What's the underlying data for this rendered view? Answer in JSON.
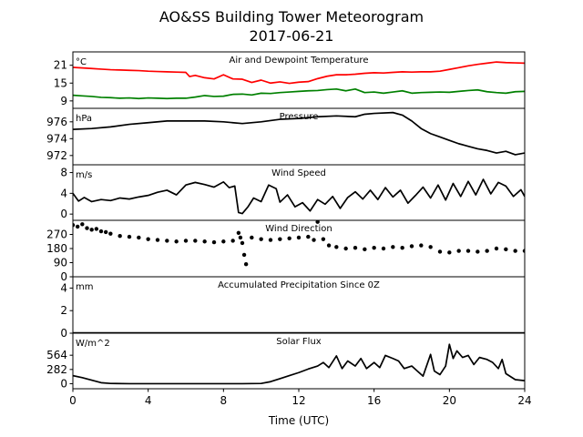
{
  "figure": {
    "title_line1": "AO&SS Building Tower Meteorogram",
    "title_line2": "2017-06-21",
    "xlabel": "Time (UTC)"
  },
  "chart_data": [
    {
      "type": "line",
      "panel": "Air and Dewpoint Temperature",
      "title": "Air and Dewpoint Temperature",
      "unit_label": "°C",
      "xlim": [
        0,
        24
      ],
      "ylim": [
        6.5,
        25.5
      ],
      "yticks": [
        9,
        15,
        21
      ],
      "ytick_labels": [
        "9",
        "15",
        "21"
      ],
      "series": [
        {
          "color": "#ff0000",
          "x": [
            0,
            0.5,
            1,
            1.5,
            2,
            2.5,
            3,
            3.5,
            4,
            4.5,
            5,
            5.5,
            6,
            6.2,
            6.5,
            7,
            7.5,
            8,
            8.5,
            9,
            9.5,
            10,
            10.5,
            11,
            11.5,
            12,
            12.5,
            13,
            13.5,
            14,
            14.5,
            15,
            15.5,
            16,
            16.5,
            17,
            17.5,
            18,
            18.5,
            19,
            19.5,
            20,
            20.5,
            21,
            21.5,
            22,
            22.5,
            23,
            23.5,
            24
          ],
          "y": [
            20.3,
            20.1,
            19.9,
            19.7,
            19.5,
            19.4,
            19.3,
            19.2,
            19,
            18.9,
            18.8,
            18.7,
            18.6,
            17.2,
            17.6,
            16.8,
            16.4,
            17.8,
            16.4,
            16.3,
            15.2,
            16,
            15,
            15.4,
            14.9,
            15.3,
            15.5,
            16.5,
            17.3,
            17.8,
            17.8,
            18,
            18.3,
            18.5,
            18.4,
            18.6,
            18.8,
            18.7,
            18.8,
            18.8,
            19,
            19.6,
            20.2,
            20.8,
            21.3,
            21.7,
            22.1,
            21.9,
            21.8,
            21.7
          ]
        },
        {
          "color": "#008000",
          "x": [
            0,
            0.5,
            1,
            1.5,
            2,
            2.5,
            3,
            3.5,
            4,
            4.5,
            5,
            5.5,
            6,
            6.5,
            7,
            7.5,
            8,
            8.5,
            9,
            9.5,
            10,
            10.5,
            11,
            11.5,
            12,
            12.5,
            13,
            13.5,
            14,
            14.5,
            15,
            15.5,
            16,
            16.5,
            17,
            17.5,
            18,
            18.5,
            19,
            19.5,
            20,
            20.5,
            21,
            21.5,
            22,
            22.5,
            23,
            23.5,
            24
          ],
          "y": [
            10.9,
            10.7,
            10.5,
            10.2,
            10.1,
            9.9,
            10,
            9.8,
            10,
            9.9,
            9.8,
            9.9,
            9.9,
            10.3,
            10.8,
            10.5,
            10.6,
            11.2,
            11.3,
            11,
            11.6,
            11.5,
            11.8,
            12,
            12.2,
            12.4,
            12.5,
            12.8,
            13,
            12.4,
            13,
            11.8,
            12,
            11.6,
            12,
            12.4,
            11.6,
            11.8,
            11.9,
            12,
            11.9,
            12.2,
            12.5,
            12.7,
            12.1,
            11.8,
            11.6,
            12.1,
            12.2
          ]
        }
      ]
    },
    {
      "type": "line",
      "panel": "Pressure",
      "title": "Pressure",
      "unit_label": "hPa",
      "xlim": [
        0,
        24
      ],
      "ylim": [
        970.9,
        977.6
      ],
      "yticks": [
        972,
        974,
        976
      ],
      "ytick_labels": [
        "972",
        "974",
        "976"
      ],
      "series": [
        {
          "color": "#000000",
          "x": [
            0,
            1,
            2,
            3,
            4,
            5,
            6,
            7,
            8,
            9,
            10,
            11,
            12,
            13,
            14,
            15,
            15.5,
            16,
            17,
            17.5,
            18,
            18.5,
            19,
            19.5,
            20,
            20.5,
            21,
            21.5,
            22,
            22.5,
            23,
            23.5,
            24
          ],
          "y": [
            975.1,
            975.2,
            975.4,
            975.7,
            975.9,
            976.1,
            976.1,
            976.1,
            976,
            975.8,
            976,
            976.3,
            976.4,
            976.6,
            976.7,
            976.6,
            976.9,
            977,
            977.1,
            976.8,
            976.1,
            975.2,
            974.6,
            974.2,
            973.8,
            973.4,
            973.1,
            972.8,
            972.6,
            972.3,
            972.5,
            972.1,
            972.3
          ]
        }
      ]
    },
    {
      "type": "line",
      "panel": "Wind Speed",
      "title": "Wind Speed",
      "unit_label": "m/s",
      "xlim": [
        0,
        24
      ],
      "ylim": [
        -1.2,
        9.5
      ],
      "yticks": [
        0,
        4,
        8
      ],
      "ytick_labels": [
        "0",
        "4",
        "8"
      ],
      "series": [
        {
          "color": "#000000",
          "x": [
            0,
            0.3,
            0.6,
            1,
            1.5,
            2,
            2.5,
            3,
            3.5,
            4,
            4.5,
            5,
            5.5,
            6,
            6.5,
            7,
            7.5,
            8,
            8.3,
            8.6,
            8.8,
            9,
            9.3,
            9.6,
            10,
            10.4,
            10.8,
            11,
            11.4,
            11.8,
            12.2,
            12.6,
            13,
            13.4,
            13.8,
            14.2,
            14.6,
            15,
            15.4,
            15.8,
            16.2,
            16.6,
            17,
            17.4,
            17.8,
            18.2,
            18.6,
            19,
            19.4,
            19.8,
            20.2,
            20.6,
            21,
            21.4,
            21.8,
            22.2,
            22.6,
            23,
            23.4,
            23.8,
            24
          ],
          "y": [
            4,
            2.5,
            3.2,
            2.4,
            2.8,
            2.6,
            3.1,
            2.9,
            3.3,
            3.6,
            4.2,
            4.6,
            3.7,
            5.6,
            6.1,
            5.7,
            5.2,
            6.2,
            5.1,
            5.4,
            0.3,
            0.1,
            1.4,
            3.1,
            2.4,
            5.6,
            4.9,
            2.3,
            3.7,
            1.4,
            2.2,
            0.6,
            2.8,
            1.9,
            3.4,
            1.1,
            3.2,
            4.3,
            2.9,
            4.6,
            2.8,
            5.1,
            3.3,
            4.6,
            2.1,
            3.6,
            5.2,
            3.1,
            5.6,
            2.7,
            5.9,
            3.4,
            6.3,
            3.7,
            6.7,
            3.9,
            6.1,
            5.4,
            3.4,
            4.7,
            3.4
          ]
        }
      ]
    },
    {
      "type": "scatter",
      "panel": "Wind Direction",
      "title": "Wind Direction",
      "unit_label": "",
      "xlim": [
        0,
        24
      ],
      "ylim": [
        0,
        360
      ],
      "yticks": [
        0,
        90,
        180,
        270
      ],
      "ytick_labels": [
        "0",
        "90",
        "180",
        "270"
      ],
      "series": [
        {
          "color": "#000000",
          "x": [
            0,
            0.25,
            0.5,
            0.75,
            1,
            1.25,
            1.5,
            1.75,
            2,
            2.5,
            3,
            3.5,
            4,
            4.5,
            5,
            5.5,
            6,
            6.5,
            7,
            7.5,
            8,
            8.5,
            8.8,
            8.9,
            9,
            9.1,
            9.2,
            9.5,
            10,
            10.5,
            11,
            11.5,
            12,
            12.5,
            12.8,
            13,
            13.3,
            13.6,
            14,
            14.5,
            15,
            15.5,
            16,
            16.5,
            17,
            17.5,
            18,
            18.5,
            19,
            19.5,
            20,
            20.5,
            21,
            21.5,
            22,
            22.5,
            23,
            23.5,
            24
          ],
          "y": [
            330,
            320,
            335,
            310,
            300,
            305,
            290,
            285,
            275,
            260,
            255,
            250,
            240,
            235,
            230,
            225,
            230,
            230,
            225,
            220,
            225,
            230,
            280,
            250,
            215,
            140,
            80,
            250,
            240,
            235,
            240,
            245,
            250,
            255,
            235,
            350,
            240,
            200,
            190,
            180,
            185,
            175,
            185,
            180,
            190,
            185,
            195,
            200,
            190,
            160,
            155,
            165,
            165,
            160,
            165,
            180,
            175,
            165,
            165
          ]
        }
      ]
    },
    {
      "type": "line",
      "panel": "Accumulated Precipitation Since 0Z",
      "title": "Accumulated Precipitation Since 0Z",
      "unit_label": "mm",
      "xlim": [
        0,
        24
      ],
      "ylim": [
        0,
        5
      ],
      "yticks": [
        0,
        2,
        4
      ],
      "ytick_labels": [
        "0",
        "2",
        "4"
      ],
      "series": [
        {
          "color": "#000000",
          "x": [
            0,
            24
          ],
          "y": [
            0,
            0
          ]
        }
      ]
    },
    {
      "type": "line",
      "panel": "Solar Flux",
      "title": "Solar Flux",
      "unit_label": "W/m^2",
      "xlim": [
        0,
        24
      ],
      "ylim": [
        -100,
        1000
      ],
      "yticks": [
        0,
        282,
        564
      ],
      "ytick_labels": [
        "0",
        "282",
        "564"
      ],
      "series": [
        {
          "color": "#000000",
          "x": [
            0,
            0.5,
            1,
            1.5,
            2,
            3,
            4,
            5,
            6,
            7,
            8,
            9,
            10,
            10.5,
            11,
            11.5,
            12,
            12.5,
            13,
            13.3,
            13.6,
            14,
            14.3,
            14.6,
            15,
            15.3,
            15.6,
            16,
            16.3,
            16.6,
            17,
            17.3,
            17.6,
            18,
            18.3,
            18.6,
            19,
            19.2,
            19.5,
            19.8,
            20,
            20.2,
            20.4,
            20.7,
            21,
            21.3,
            21.6,
            22,
            22.3,
            22.6,
            22.8,
            23,
            23.5,
            24
          ],
          "y": [
            160,
            120,
            70,
            20,
            5,
            0,
            0,
            0,
            0,
            0,
            0,
            0,
            5,
            40,
            100,
            160,
            220,
            290,
            350,
            420,
            320,
            550,
            300,
            450,
            350,
            500,
            300,
            420,
            320,
            560,
            500,
            450,
            300,
            350,
            250,
            150,
            580,
            250,
            180,
            350,
            780,
            500,
            650,
            520,
            560,
            380,
            520,
            480,
            420,
            300,
            480,
            200,
            80,
            60
          ]
        }
      ]
    }
  ]
}
